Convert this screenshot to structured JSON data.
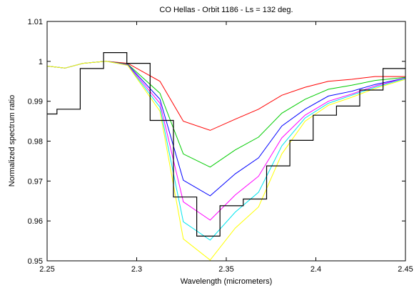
{
  "chart_data": {
    "type": "line",
    "title": "CO Hellas - Orbit 1186 - Ls = 132 deg.",
    "xlabel": "Wavelength (micrometers)",
    "ylabel": "Normalized spectrum ratio",
    "xlim": [
      2.25,
      2.45
    ],
    "ylim": [
      0.95,
      1.01
    ],
    "x_ticks": [
      "2.25",
      "2.3",
      "2.35",
      "2.4",
      "2.45"
    ],
    "y_ticks": [
      "0.95",
      "0.96",
      "0.97",
      "0.98",
      "0.99",
      "1",
      "1.01"
    ],
    "grid": false,
    "legend": "none",
    "series": [
      {
        "color": "#ff0000",
        "x": [
          2.25,
          2.26,
          2.27,
          2.283,
          2.295,
          2.313,
          2.326,
          2.341,
          2.355,
          2.368,
          2.381,
          2.394,
          2.407,
          2.42,
          2.433,
          2.45
        ],
        "y": [
          0.9988,
          0.9983,
          0.9995,
          1.0,
          0.9995,
          0.995,
          0.985,
          0.9827,
          0.9855,
          0.988,
          0.9915,
          0.9935,
          0.995,
          0.9955,
          0.9962,
          0.9962
        ]
      },
      {
        "color": "#00cc00",
        "x": [
          2.25,
          2.26,
          2.27,
          2.283,
          2.295,
          2.313,
          2.326,
          2.341,
          2.355,
          2.368,
          2.381,
          2.394,
          2.407,
          2.42,
          2.433,
          2.45
        ],
        "y": [
          0.9988,
          0.9983,
          0.9995,
          1.0,
          0.9993,
          0.992,
          0.9768,
          0.9735,
          0.9778,
          0.981,
          0.987,
          0.9905,
          0.993,
          0.994,
          0.9952,
          0.996
        ]
      },
      {
        "color": "#0000ff",
        "x": [
          2.25,
          2.26,
          2.27,
          2.283,
          2.295,
          2.313,
          2.326,
          2.341,
          2.355,
          2.368,
          2.381,
          2.394,
          2.407,
          2.42,
          2.433,
          2.45
        ],
        "y": [
          0.9988,
          0.9983,
          0.9995,
          1.0,
          0.9992,
          0.9905,
          0.9702,
          0.9663,
          0.9718,
          0.9758,
          0.9838,
          0.988,
          0.9913,
          0.9925,
          0.9942,
          0.9958
        ]
      },
      {
        "color": "#ff00ff",
        "x": [
          2.25,
          2.26,
          2.27,
          2.283,
          2.295,
          2.313,
          2.326,
          2.341,
          2.355,
          2.368,
          2.381,
          2.394,
          2.407,
          2.42,
          2.433,
          2.45
        ],
        "y": [
          0.9988,
          0.9983,
          0.9995,
          1.0,
          0.9991,
          0.9895,
          0.9648,
          0.9602,
          0.9665,
          0.9712,
          0.9808,
          0.9865,
          0.99,
          0.9918,
          0.9938,
          0.9958
        ]
      },
      {
        "color": "#00e5ee",
        "x": [
          2.25,
          2.26,
          2.27,
          2.283,
          2.295,
          2.313,
          2.326,
          2.341,
          2.355,
          2.368,
          2.381,
          2.394,
          2.407,
          2.42,
          2.433,
          2.45
        ],
        "y": [
          0.9988,
          0.9983,
          0.9995,
          1.0,
          0.999,
          0.9885,
          0.9598,
          0.9552,
          0.9622,
          0.9672,
          0.9788,
          0.9858,
          0.9895,
          0.9915,
          0.9935,
          0.9957
        ]
      },
      {
        "color": "#ffff00",
        "x": [
          2.25,
          2.26,
          2.27,
          2.283,
          2.295,
          2.313,
          2.326,
          2.341,
          2.355,
          2.368,
          2.381,
          2.394,
          2.407,
          2.42,
          2.433,
          2.45
        ],
        "y": [
          0.9988,
          0.9983,
          0.9995,
          1.0,
          0.999,
          0.9875,
          0.9555,
          0.9502,
          0.9582,
          0.9635,
          0.9768,
          0.985,
          0.989,
          0.991,
          0.9932,
          0.9955
        ]
      }
    ],
    "observed": {
      "color": "#000000",
      "style": "step",
      "edges": [
        2.25,
        2.2555,
        2.2685,
        2.2815,
        2.2945,
        2.3075,
        2.3205,
        2.3335,
        2.3465,
        2.3595,
        2.3725,
        2.3855,
        2.3985,
        2.4115,
        2.4245,
        2.4375,
        2.45
      ],
      "values": [
        0.9868,
        0.988,
        0.9982,
        1.0022,
        0.9995,
        0.9852,
        0.966,
        0.9562,
        0.9638,
        0.9655,
        0.9738,
        0.9802,
        0.9865,
        0.9888,
        0.9928,
        0.9982
      ]
    }
  }
}
